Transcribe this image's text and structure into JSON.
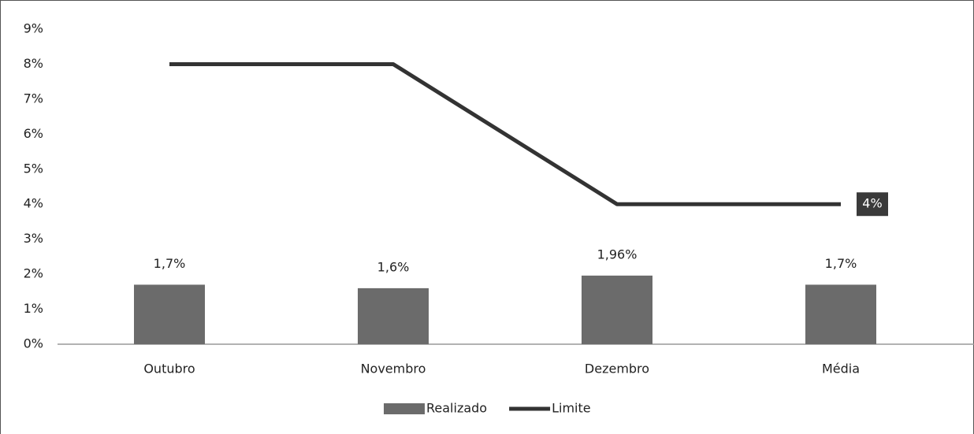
{
  "chart_data": {
    "type": "bar",
    "categories": [
      "Outubro",
      "Novembro",
      "Dezembro",
      "Média"
    ],
    "series": [
      {
        "name": "Realizado",
        "type": "bar",
        "color": "#6b6b6b",
        "values": [
          1.7,
          1.6,
          1.96,
          1.7
        ],
        "value_labels": [
          "1,7%",
          "1,6%",
          "1,96%",
          "1,7%"
        ]
      },
      {
        "name": "Limite",
        "type": "line",
        "color": "#333333",
        "values": [
          8,
          8,
          4,
          4
        ],
        "value_labels": [
          null,
          null,
          null,
          "4%"
        ]
      }
    ],
    "ylim": [
      0,
      9
    ],
    "yticks": [
      {
        "value": 0,
        "label": "0%"
      },
      {
        "value": 1,
        "label": "1%"
      },
      {
        "value": 2,
        "label": "2%"
      },
      {
        "value": 3,
        "label": "3%"
      },
      {
        "value": 4,
        "label": "4%"
      },
      {
        "value": 5,
        "label": "5%"
      },
      {
        "value": 6,
        "label": "6%"
      },
      {
        "value": 7,
        "label": "7%"
      },
      {
        "value": 8,
        "label": "8%"
      },
      {
        "value": 9,
        "label": "9%"
      }
    ],
    "grid": false,
    "legend": "bottom"
  }
}
